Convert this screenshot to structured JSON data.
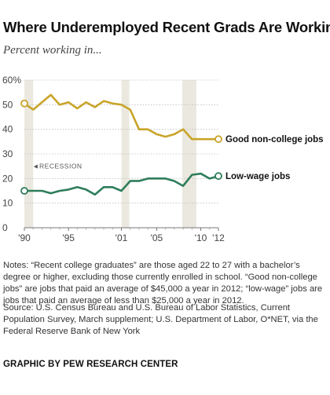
{
  "page": {
    "title": "Where Underemployed Recent Grads Are Working",
    "subtitle": "Percent working in...",
    "notes": "Notes: “Recent college graduates” are those aged 22 to 27 with a bachelor’s degree or higher, excluding those currently enrolled in school. “Good non-college jobs” are jobs that paid an average of $45,000 a year in 2012; “low-wage” jobs are jobs that paid an average of less than $25,000 a year in 2012.",
    "source": "Source: U.S. Census Bureau and U.S. Bureau of Labor Statistics, Current Population Survey, March supplement; U.S. Department of Labor, O*NET, via the Federal Reserve Bank of New York",
    "credit": "GRAPHIC BY PEW RESEARCH CENTER"
  },
  "chart_data": {
    "type": "line",
    "x": [
      1990,
      1991,
      1992,
      1993,
      1994,
      1995,
      1996,
      1997,
      1998,
      1999,
      2000,
      2001,
      2002,
      2003,
      2004,
      2005,
      2006,
      2007,
      2008,
      2009,
      2010,
      2011,
      2012
    ],
    "series": [
      {
        "name": "Good non-college jobs",
        "color": "#c9a42a",
        "values": [
          50.5,
          48,
          51,
          54,
          50,
          51,
          48.5,
          51,
          49,
          51.5,
          50.5,
          50,
          48,
          40,
          40,
          38,
          37,
          38,
          40,
          36,
          36,
          36,
          36
        ]
      },
      {
        "name": "Low-wage jobs",
        "color": "#2e7d5b",
        "values": [
          15,
          15,
          15,
          14,
          15,
          15.5,
          16.5,
          15.5,
          13.5,
          16.5,
          16.5,
          15,
          19,
          19,
          20,
          20,
          20,
          19,
          17,
          21.5,
          22,
          20,
          21
        ]
      }
    ],
    "ylim": [
      0,
      60
    ],
    "yticks": [
      0,
      10,
      20,
      30,
      40,
      50,
      60
    ],
    "ytick_labels": [
      "0",
      "10",
      "20",
      "30",
      "40",
      "50",
      "60%"
    ],
    "xticks": [
      1990,
      1995,
      2001,
      2005,
      2010,
      2012
    ],
    "xtick_labels": [
      "'90",
      "'95",
      "'01",
      "'05",
      "'10",
      "'12"
    ],
    "recessions": [
      [
        1990,
        1991
      ],
      [
        2001,
        2001.9
      ],
      [
        2007.9,
        2009.5
      ]
    ],
    "recession_label": "◄RECESSION",
    "recession_label_at": {
      "x": 1990.9,
      "y": 25
    },
    "grid": true
  }
}
